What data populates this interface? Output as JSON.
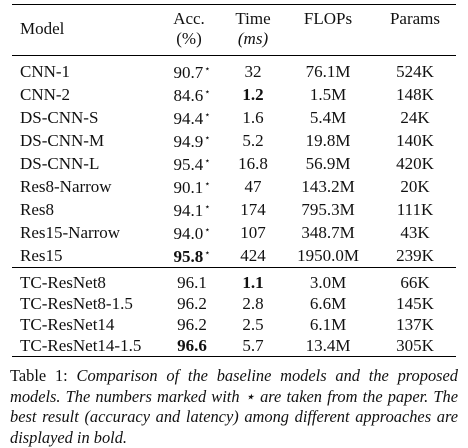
{
  "headers": {
    "model": "Model",
    "acc_line1": "Acc.",
    "acc_line2": "(%)",
    "time_line1": "Time",
    "time_line2": "(ms)",
    "flops": "FLOPs",
    "params": "Params"
  },
  "baseline_rows": [
    {
      "model": "CNN-1",
      "acc": "90.7",
      "star": "⋆",
      "time": "32",
      "flops": "76.1M",
      "params": "524K",
      "acc_bold": false,
      "time_bold": false
    },
    {
      "model": "CNN-2",
      "acc": "84.6",
      "star": "⋆",
      "time": "1.2",
      "flops": "1.5M",
      "params": "148K",
      "acc_bold": false,
      "time_bold": true
    },
    {
      "model": "DS-CNN-S",
      "acc": "94.4",
      "star": "⋆",
      "time": "1.6",
      "flops": "5.4M",
      "params": "24K",
      "acc_bold": false,
      "time_bold": false
    },
    {
      "model": "DS-CNN-M",
      "acc": "94.9",
      "star": "⋆",
      "time": "5.2",
      "flops": "19.8M",
      "params": "140K",
      "acc_bold": false,
      "time_bold": false
    },
    {
      "model": "DS-CNN-L",
      "acc": "95.4",
      "star": "⋆",
      "time": "16.8",
      "flops": "56.9M",
      "params": "420K",
      "acc_bold": false,
      "time_bold": false
    },
    {
      "model": "Res8-Narrow",
      "acc": "90.1",
      "star": "⋆",
      "time": "47",
      "flops": "143.2M",
      "params": "20K",
      "acc_bold": false,
      "time_bold": false
    },
    {
      "model": "Res8",
      "acc": "94.1",
      "star": "⋆",
      "time": "174",
      "flops": "795.3M",
      "params": "111K",
      "acc_bold": false,
      "time_bold": false
    },
    {
      "model": "Res15-Narrow",
      "acc": "94.0",
      "star": "⋆",
      "time": "107",
      "flops": "348.7M",
      "params": "43K",
      "acc_bold": false,
      "time_bold": false
    },
    {
      "model": "Res15",
      "acc": "95.8",
      "star": "⋆",
      "time": "424",
      "flops": "1950.0M",
      "params": "239K",
      "acc_bold": true,
      "time_bold": false
    }
  ],
  "proposed_rows": [
    {
      "model": "TC-ResNet8",
      "acc": "96.1",
      "star": "",
      "time": "1.1",
      "flops": "3.0M",
      "params": "66K",
      "acc_bold": false,
      "time_bold": true
    },
    {
      "model": "TC-ResNet8-1.5",
      "acc": "96.2",
      "star": "",
      "time": "2.8",
      "flops": "6.6M",
      "params": "145K",
      "acc_bold": false,
      "time_bold": false
    },
    {
      "model": "TC-ResNet14",
      "acc": "96.2",
      "star": "",
      "time": "2.5",
      "flops": "6.1M",
      "params": "137K",
      "acc_bold": false,
      "time_bold": false
    },
    {
      "model": "TC-ResNet14-1.5",
      "acc": "96.6",
      "star": "",
      "time": "5.7",
      "flops": "13.4M",
      "params": "305K",
      "acc_bold": true,
      "time_bold": false
    }
  ],
  "caption": {
    "label": "Table 1:",
    "text": "Comparison of the baseline models and the proposed models. The numbers marked with ⋆ are taken from the paper. The best result (accuracy and latency) among different approaches are displayed in bold."
  }
}
